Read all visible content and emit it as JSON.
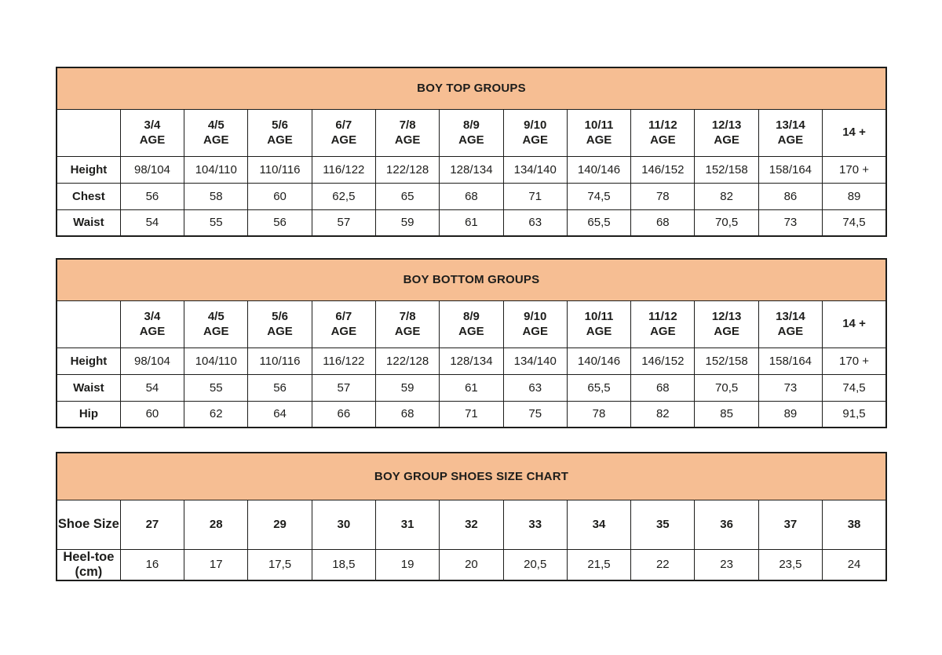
{
  "colors": {
    "header_bg": "#f6be93",
    "border": "#1d1d1b",
    "text": "#1d1d1b",
    "page_bg": "#ffffff"
  },
  "chart_data": [
    {
      "type": "table",
      "title": "BOY TOP GROUPS",
      "corner_label": "",
      "columns": [
        "3/4\nAGE",
        "4/5\nAGE",
        "5/6\nAGE",
        "6/7\nAGE",
        "7/8\nAGE",
        "8/9\nAGE",
        "9/10\nAGE",
        "10/11\nAGE",
        "11/12\nAGE",
        "12/13\nAGE",
        "13/14\nAGE",
        "14 +"
      ],
      "rows": [
        {
          "label": "Height",
          "values": [
            "98/104",
            "104/110",
            "110/116",
            "116/122",
            "122/128",
            "128/134",
            "134/140",
            "140/146",
            "146/152",
            "152/158",
            "158/164",
            "170 +"
          ]
        },
        {
          "label": "Chest",
          "values": [
            "56",
            "58",
            "60",
            "62,5",
            "65",
            "68",
            "71",
            "74,5",
            "78",
            "82",
            "86",
            "89"
          ]
        },
        {
          "label": "Waist",
          "values": [
            "54",
            "55",
            "56",
            "57",
            "59",
            "61",
            "63",
            "65,5",
            "68",
            "70,5",
            "73",
            "74,5"
          ]
        }
      ]
    },
    {
      "type": "table",
      "title": "BOY BOTTOM GROUPS",
      "corner_label": "",
      "columns": [
        "3/4\nAGE",
        "4/5\nAGE",
        "5/6\nAGE",
        "6/7\nAGE",
        "7/8\nAGE",
        "8/9\nAGE",
        "9/10\nAGE",
        "10/11\nAGE",
        "11/12\nAGE",
        "12/13\nAGE",
        "13/14\nAGE",
        "14 +"
      ],
      "rows": [
        {
          "label": "Height",
          "values": [
            "98/104",
            "104/110",
            "110/116",
            "116/122",
            "122/128",
            "128/134",
            "134/140",
            "140/146",
            "146/152",
            "152/158",
            "158/164",
            "170 +"
          ]
        },
        {
          "label": "Waist",
          "values": [
            "54",
            "55",
            "56",
            "57",
            "59",
            "61",
            "63",
            "65,5",
            "68",
            "70,5",
            "73",
            "74,5"
          ]
        },
        {
          "label": "Hip",
          "values": [
            "60",
            "62",
            "64",
            "66",
            "68",
            "71",
            "75",
            "78",
            "82",
            "85",
            "89",
            "91,5"
          ]
        }
      ]
    },
    {
      "type": "table",
      "title": "BOY GROUP SHOES SIZE CHART",
      "corner_label": "Shoe Size",
      "columns": [
        "27",
        "28",
        "29",
        "30",
        "31",
        "32",
        "33",
        "34",
        "35",
        "36",
        "37",
        "38"
      ],
      "rows": [
        {
          "label": "Heel-toe (cm)",
          "values": [
            "16",
            "17",
            "17,5",
            "18,5",
            "19",
            "20",
            "20,5",
            "21,5",
            "22",
            "23",
            "23,5",
            "24"
          ]
        }
      ]
    }
  ]
}
